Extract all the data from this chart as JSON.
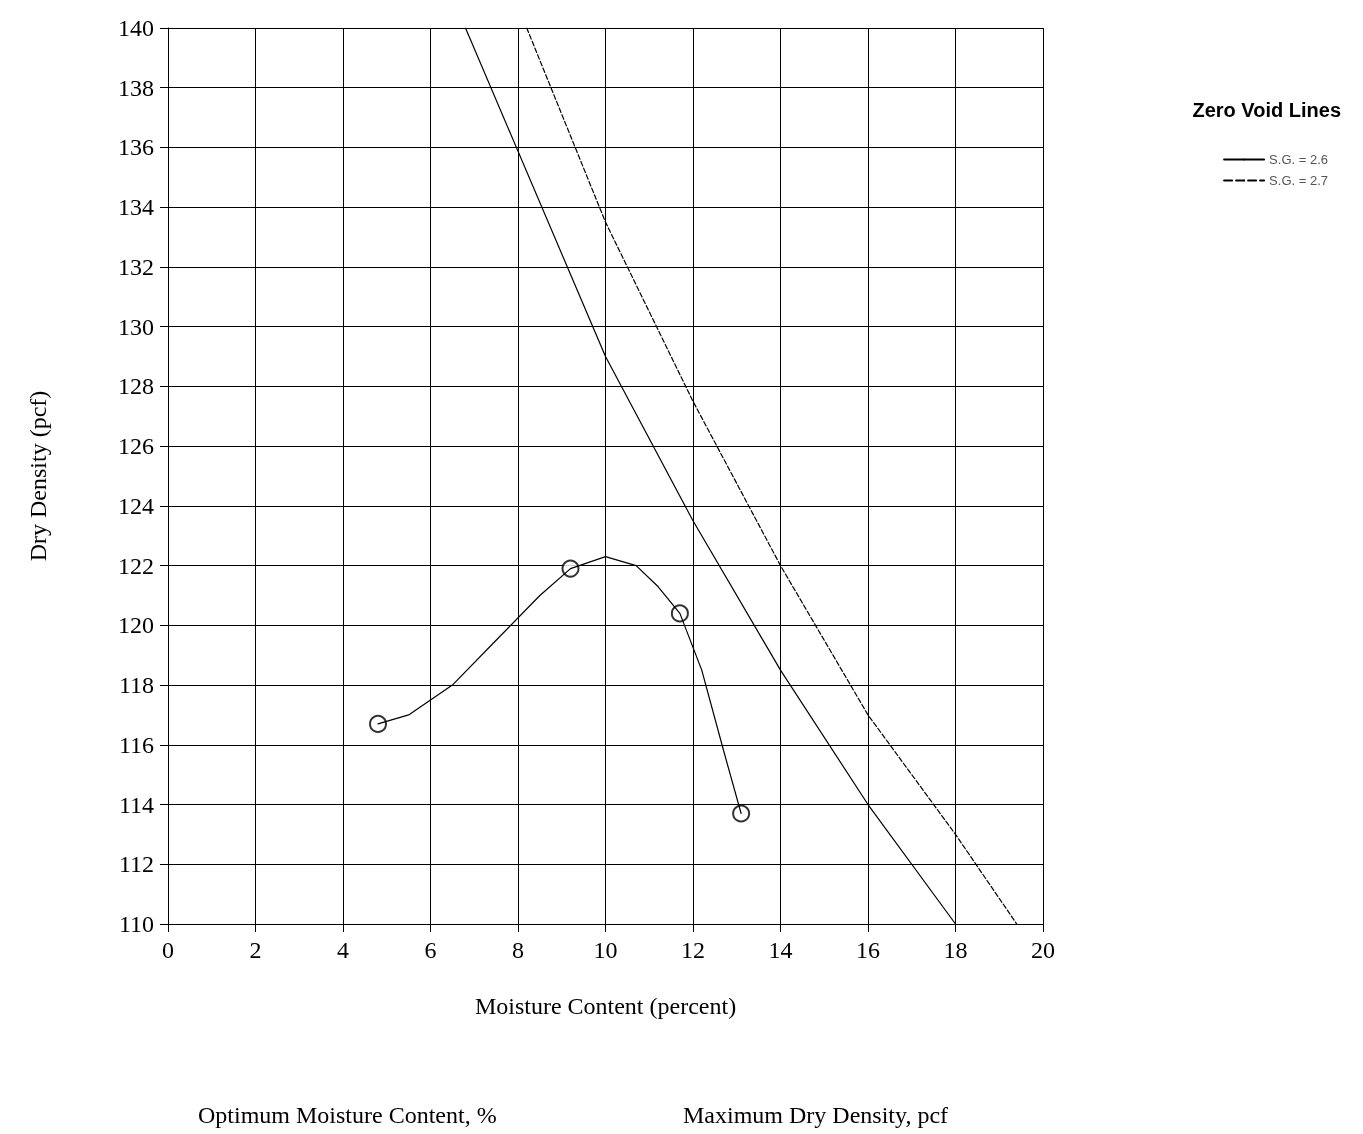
{
  "chart_data": {
    "type": "scatter",
    "xlabel": "Moisture Content (percent)",
    "ylabel": "Dry Density (pcf)",
    "legend_title": "Zero Void Lines",
    "annotations": [
      "Optimum Moisture Content, %",
      "Maximum Dry Density, pcf"
    ],
    "xlim": [
      0,
      20
    ],
    "ylim": [
      110,
      140
    ],
    "xticks": [
      0,
      2,
      4,
      6,
      8,
      10,
      12,
      14,
      16,
      18,
      20
    ],
    "yticks": [
      110,
      112,
      114,
      116,
      118,
      120,
      122,
      124,
      126,
      128,
      130,
      132,
      134,
      136,
      138,
      140
    ],
    "grid": true,
    "legend": "top right",
    "series": [
      {
        "color": "#000000",
        "marker": "circle",
        "x": [
          4.8,
          9.2,
          11.7,
          13.1
        ],
        "values": [
          116.7,
          121.9,
          120.4,
          113.7
        ]
      },
      {
        "type": "line",
        "color": "#000000",
        "marker": "none",
        "line_style": "solid",
        "x": [
          4.8,
          5.5,
          6.5,
          7.5,
          8.5,
          9.2,
          10,
          10.7,
          11.2,
          11.7,
          12.2,
          12.7,
          13.1
        ],
        "values": [
          116.7,
          117,
          118,
          119.5,
          121,
          121.9,
          122.3,
          122,
          121.3,
          120.4,
          118.5,
          115.8,
          113.7
        ]
      },
      {
        "type": "line",
        "name": "S.G. = 2.6",
        "color": "#000000",
        "marker": "none",
        "line_style": "solid",
        "x": [
          6.8,
          10,
          12,
          14,
          16,
          18
        ],
        "values": [
          140,
          129,
          123.5,
          118.5,
          114,
          110
        ]
      },
      {
        "type": "line",
        "name": "S.G. = 2.7",
        "color": "#000000",
        "marker": "none",
        "line_style": "dashed",
        "x": [
          8.2,
          10,
          12,
          14,
          16,
          18,
          19.4
        ],
        "values": [
          140,
          133.5,
          127.5,
          122,
          117,
          113,
          110
        ]
      }
    ]
  }
}
